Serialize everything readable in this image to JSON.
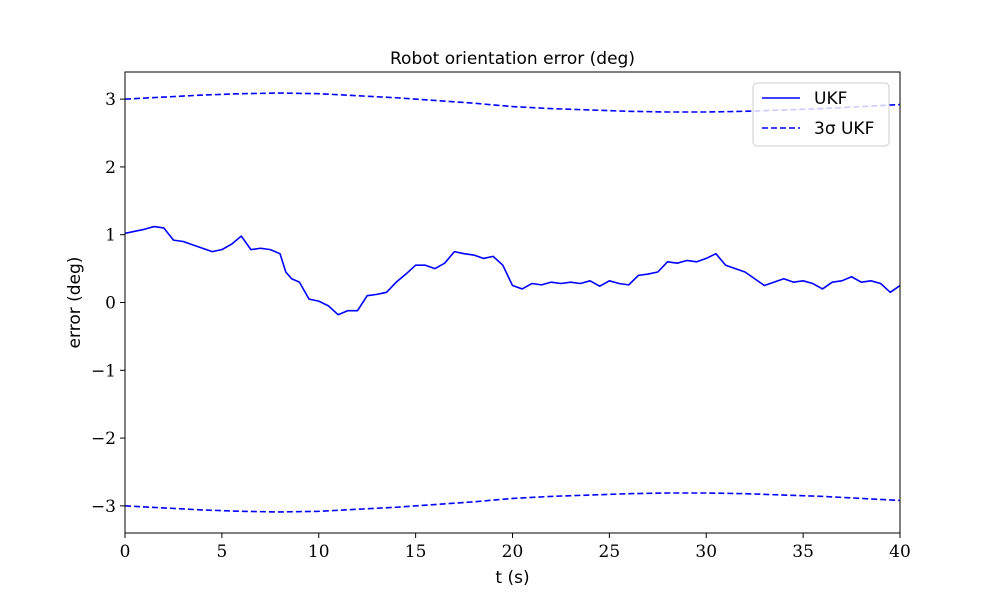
{
  "chart_data": {
    "type": "line",
    "title": "Robot orientation error (deg)",
    "xlabel": "t (s)",
    "ylabel": "error (deg)",
    "xlim": [
      0,
      40
    ],
    "ylim": [
      -3.4,
      3.4
    ],
    "xticks": [
      0,
      5,
      10,
      15,
      20,
      25,
      30,
      35,
      40
    ],
    "xtick_labels": [
      "0",
      "5",
      "10",
      "15",
      "20",
      "25",
      "30",
      "35",
      "40"
    ],
    "yticks": [
      -3,
      -2,
      -1,
      0,
      1,
      2,
      3
    ],
    "ytick_labels": [
      "−3",
      "−2",
      "−1",
      "0",
      "1",
      "2",
      "3"
    ],
    "grid": false,
    "legend_position": "top-right",
    "series": [
      {
        "name": "UKF",
        "style": "solid",
        "color": "#0000ff",
        "x": [
          0,
          0.5,
          1,
          1.5,
          2,
          2.5,
          3,
          3.5,
          4,
          4.5,
          5,
          5.5,
          6,
          6.5,
          7,
          7.5,
          8,
          8.3,
          8.6,
          9,
          9.5,
          10,
          10.5,
          11,
          11.5,
          12,
          12.5,
          13,
          13.5,
          14,
          14.5,
          15,
          15.5,
          16,
          16.5,
          17,
          17.5,
          18,
          18.5,
          19,
          19.5,
          20,
          20.5,
          21,
          21.5,
          22,
          22.5,
          23,
          23.5,
          24,
          24.5,
          25,
          25.5,
          26,
          26.5,
          27,
          27.5,
          28,
          28.5,
          29,
          29.5,
          30,
          30.5,
          31,
          31.5,
          32,
          32.5,
          33,
          33.5,
          34,
          34.5,
          35,
          35.5,
          36,
          36.5,
          37,
          37.5,
          38,
          38.5,
          39,
          39.5,
          40
        ],
        "y": [
          1.02,
          1.05,
          1.08,
          1.12,
          1.1,
          0.92,
          0.9,
          0.85,
          0.8,
          0.75,
          0.78,
          0.86,
          0.98,
          0.78,
          0.8,
          0.78,
          0.72,
          0.45,
          0.35,
          0.3,
          0.05,
          0.02,
          -0.05,
          -0.18,
          -0.12,
          -0.12,
          0.1,
          0.12,
          0.15,
          0.3,
          0.42,
          0.55,
          0.55,
          0.5,
          0.58,
          0.75,
          0.72,
          0.7,
          0.65,
          0.68,
          0.55,
          0.25,
          0.2,
          0.28,
          0.26,
          0.3,
          0.28,
          0.3,
          0.28,
          0.32,
          0.24,
          0.32,
          0.28,
          0.26,
          0.4,
          0.42,
          0.45,
          0.6,
          0.58,
          0.62,
          0.6,
          0.65,
          0.72,
          0.55,
          0.5,
          0.45,
          0.35,
          0.25,
          0.3,
          0.35,
          0.3,
          0.32,
          0.28,
          0.2,
          0.3,
          0.32,
          0.38,
          0.3,
          0.32,
          0.28,
          0.15,
          0.25
        ]
      },
      {
        "name": "3σ UKF",
        "style": "dashed",
        "color": "#0000ff",
        "x": [
          0,
          2,
          4,
          6,
          8,
          10,
          12,
          14,
          16,
          18,
          20,
          22,
          24,
          26,
          28,
          30,
          32,
          34,
          36,
          38,
          40
        ],
        "y": [
          3.0,
          3.03,
          3.06,
          3.08,
          3.09,
          3.08,
          3.05,
          3.02,
          2.98,
          2.94,
          2.89,
          2.86,
          2.84,
          2.82,
          2.81,
          2.81,
          2.82,
          2.84,
          2.86,
          2.89,
          2.92
        ]
      },
      {
        "name": "",
        "style": "dashed",
        "color": "#0000ff",
        "x": [
          0,
          2,
          4,
          6,
          8,
          10,
          12,
          14,
          16,
          18,
          20,
          22,
          24,
          26,
          28,
          30,
          32,
          34,
          36,
          38,
          40
        ],
        "y": [
          -3.0,
          -3.03,
          -3.06,
          -3.08,
          -3.09,
          -3.08,
          -3.05,
          -3.02,
          -2.98,
          -2.94,
          -2.89,
          -2.86,
          -2.84,
          -2.82,
          -2.81,
          -2.81,
          -2.82,
          -2.84,
          -2.86,
          -2.89,
          -2.92
        ]
      }
    ]
  }
}
